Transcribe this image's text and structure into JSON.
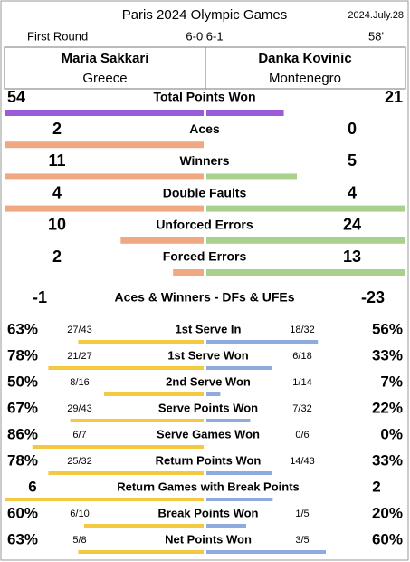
{
  "header": {
    "title": "Paris 2024 Olympic Games",
    "date": "2024.July.28",
    "round": "First Round",
    "score": "6-0 6-1",
    "duration": "58'"
  },
  "players": [
    {
      "name": "Maria Sakkari",
      "country": "Greece"
    },
    {
      "name": "Danka Kovinic",
      "country": "Montenegro"
    }
  ],
  "colors": {
    "total": "#9b5bd6",
    "left": "#f0a882",
    "right": "#a9d18e",
    "left_pct": "#f5c842",
    "right_pct": "#8faadc",
    "red": "#e01b1b"
  },
  "stats": [
    {
      "label": "Total Points Won",
      "left": 54,
      "right": 21
    },
    {
      "label": "Aces",
      "left": 2,
      "right": 0
    },
    {
      "label": "Winners",
      "left": 11,
      "right": 5
    },
    {
      "label": "Double Faults",
      "left": 4,
      "right": 4,
      "red": true
    },
    {
      "label": "Unforced Errors",
      "left": 10,
      "right": 24,
      "red": true
    },
    {
      "label": "Forced Errors",
      "left": 2,
      "right": 13,
      "red": true
    }
  ],
  "summary": {
    "label": "Aces & Winners - DFs & UFEs",
    "left": -1,
    "right": -23
  },
  "pct_rows": [
    {
      "label": "1st Serve In",
      "left": 63,
      "left_label": "63%",
      "left_detail": "27/43",
      "right": 56,
      "right_label": "56%",
      "right_detail": "18/32"
    },
    {
      "label": "1st Serve Won",
      "left": 78,
      "left_label": "78%",
      "left_detail": "21/27",
      "right": 33,
      "right_label": "33%",
      "right_detail": "6/18"
    },
    {
      "label": "2nd Serve Won",
      "left": 50,
      "left_label": "50%",
      "left_detail": "8/16",
      "right": 7,
      "right_label": "7%",
      "right_detail": "1/14"
    },
    {
      "label": "Serve Points Won",
      "left": 67,
      "left_label": "67%",
      "left_detail": "29/43",
      "right": 22,
      "right_label": "22%",
      "right_detail": "7/32"
    },
    {
      "label": "Serve Games Won",
      "left": 86,
      "left_label": "86%",
      "left_detail": "6/7",
      "right": 0,
      "right_label": "0%",
      "right_detail": "0/6"
    },
    {
      "label": "Return Points Won",
      "left": 78,
      "left_label": "78%",
      "left_detail": "25/32",
      "right": 33,
      "right_label": "33%",
      "right_detail": "14/43"
    },
    {
      "label": "Return Games with Break Points",
      "left": 6,
      "right": 2
    },
    {
      "label": "Break Points Won",
      "left": 60,
      "left_label": "60%",
      "left_detail": "6/10",
      "right": 20,
      "right_label": "20%",
      "right_detail": "1/5"
    },
    {
      "label": "Net Points Won",
      "left": 63,
      "left_label": "63%",
      "left_detail": "5/8",
      "right": 60,
      "right_label": "60%",
      "right_detail": "3/5"
    }
  ]
}
